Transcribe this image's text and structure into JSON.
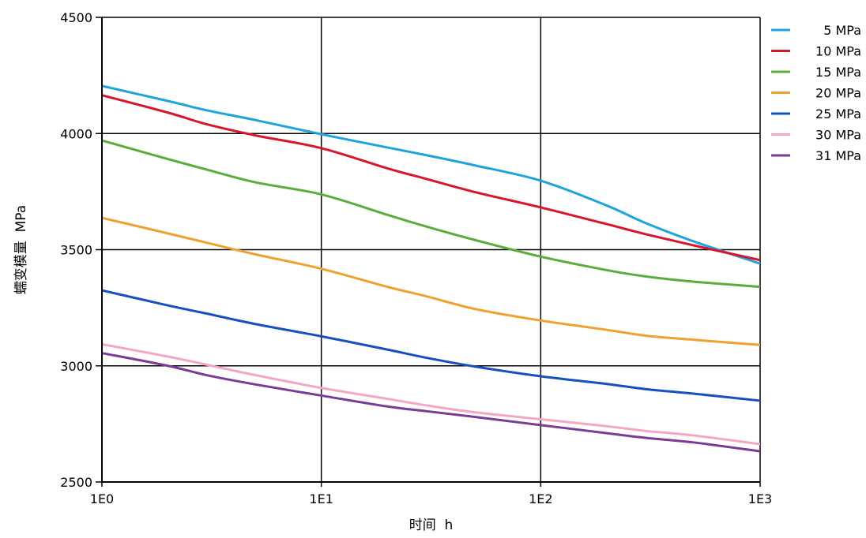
{
  "chart_data": {
    "type": "line",
    "xlabel": "时间  h",
    "ylabel": "蠕变模量  MPa",
    "x_scale": "log",
    "xlim": [
      1,
      1000
    ],
    "ylim": [
      2500,
      4500
    ],
    "x_ticks": [
      {
        "value": 1,
        "label": "1E0"
      },
      {
        "value": 10,
        "label": "1E1"
      },
      {
        "value": 100,
        "label": "1E2"
      },
      {
        "value": 1000,
        "label": "1E3"
      }
    ],
    "y_ticks": [
      {
        "value": 2500,
        "label": "2500"
      },
      {
        "value": 3000,
        "label": "3000"
      },
      {
        "value": 3500,
        "label": "3500"
      },
      {
        "value": 4000,
        "label": "4000"
      },
      {
        "value": 4500,
        "label": "4500"
      }
    ],
    "grid": true,
    "legend_position": "top-right",
    "x": [
      1,
      2,
      3,
      5,
      10,
      20,
      30,
      50,
      100,
      200,
      300,
      500,
      1000
    ],
    "series": [
      {
        "name": "5 MPa",
        "color": "#1ea3dc",
        "values": [
          4205,
          4140,
          4100,
          4058,
          3997,
          3940,
          3907,
          3863,
          3797,
          3690,
          3615,
          3535,
          3440
        ]
      },
      {
        "name": "10 MPa",
        "color": "#d7162d",
        "values": [
          4165,
          4090,
          4040,
          3992,
          3937,
          3850,
          3805,
          3748,
          3682,
          3610,
          3567,
          3518,
          3455
        ]
      },
      {
        "name": "15 MPa",
        "color": "#5aac3c",
        "values": [
          3970,
          3890,
          3845,
          3790,
          3738,
          3650,
          3600,
          3542,
          3470,
          3412,
          3385,
          3362,
          3340
        ]
      },
      {
        "name": "20 MPa",
        "color": "#f0a030",
        "values": [
          3637,
          3570,
          3530,
          3480,
          3418,
          3340,
          3300,
          3245,
          3195,
          3155,
          3130,
          3112,
          3090
        ]
      },
      {
        "name": "25 MPa",
        "color": "#1650c0",
        "values": [
          3325,
          3260,
          3225,
          3180,
          3127,
          3070,
          3035,
          2997,
          2955,
          2922,
          2900,
          2880,
          2850
        ]
      },
      {
        "name": "30 MPa",
        "color": "#f4a6c6",
        "values": [
          3093,
          3040,
          3005,
          2960,
          2905,
          2858,
          2830,
          2800,
          2770,
          2740,
          2720,
          2700,
          2663
        ]
      },
      {
        "name": "31 MPa",
        "color": "#7a3c96",
        "values": [
          3055,
          3000,
          2960,
          2920,
          2872,
          2825,
          2805,
          2780,
          2745,
          2710,
          2690,
          2670,
          2632
        ]
      }
    ]
  }
}
